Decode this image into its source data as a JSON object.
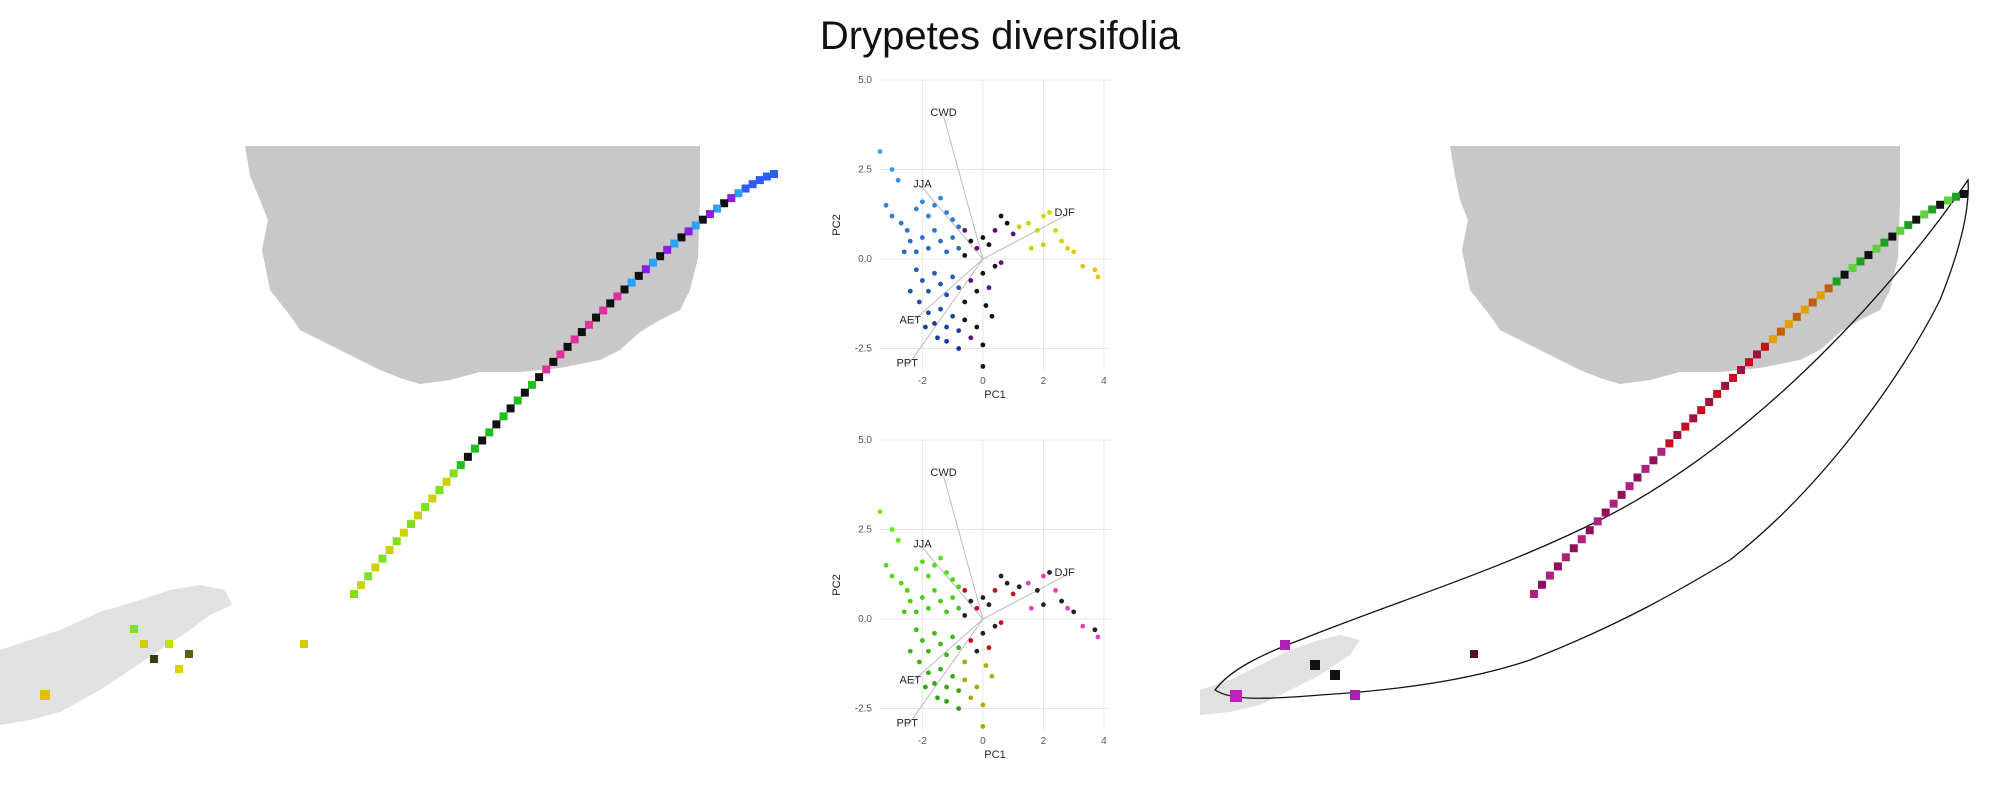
{
  "title": "Drypetes diversifolia",
  "chart_data": [
    {
      "type": "map",
      "panel": "left",
      "description_units": "geographic",
      "legend": "none"
    },
    {
      "type": "scatter",
      "panel": "pca-top",
      "xlabel": "PC1",
      "ylabel": "PC2",
      "xlim": [
        -3.4,
        4.2
      ],
      "ylim": [
        -3.1,
        5.0
      ],
      "xticks": [
        "-2",
        "0",
        "2",
        "4"
      ],
      "yticks": [
        "5.0",
        "2.5",
        "0.0",
        "-2.5"
      ],
      "xtick_values": [
        -2,
        0,
        2,
        4
      ],
      "ytick_values": [
        5.0,
        2.5,
        0.0,
        -2.5
      ],
      "grid": true,
      "vectors": [
        {
          "label": "CWD",
          "x": -1.3,
          "y": 4.0
        },
        {
          "label": "DJF",
          "x": 2.7,
          "y": 1.2
        },
        {
          "label": "JJA",
          "x": -2.0,
          "y": 2.0
        },
        {
          "label": "AET",
          "x": -2.4,
          "y": -1.8
        },
        {
          "label": "PPT",
          "x": -2.5,
          "y": -3.0
        }
      ],
      "points": [
        [
          -3.4,
          3.0
        ],
        [
          -3.0,
          2.5
        ],
        [
          -2.8,
          2.2
        ],
        [
          -3.2,
          1.5
        ],
        [
          -3.0,
          1.2
        ],
        [
          -2.7,
          1.0
        ],
        [
          -2.5,
          0.8
        ],
        [
          -2.2,
          1.4
        ],
        [
          -2.0,
          1.6
        ],
        [
          -1.8,
          1.2
        ],
        [
          -1.6,
          1.5
        ],
        [
          -1.4,
          1.7
        ],
        [
          -1.2,
          1.3
        ],
        [
          -1.0,
          1.1
        ],
        [
          -0.8,
          0.9
        ],
        [
          -0.6,
          0.8
        ],
        [
          -2.4,
          0.5
        ],
        [
          -2.2,
          0.2
        ],
        [
          -2.0,
          0.6
        ],
        [
          -1.8,
          0.3
        ],
        [
          -1.6,
          0.8
        ],
        [
          -1.4,
          0.5
        ],
        [
          -1.2,
          0.2
        ],
        [
          -1.0,
          0.6
        ],
        [
          -0.8,
          0.3
        ],
        [
          -0.6,
          0.1
        ],
        [
          -0.4,
          0.5
        ],
        [
          -0.2,
          0.3
        ],
        [
          0.0,
          0.6
        ],
        [
          0.2,
          0.4
        ],
        [
          0.4,
          0.8
        ],
        [
          0.6,
          1.2
        ],
        [
          0.8,
          1.0
        ],
        [
          1.0,
          0.7
        ],
        [
          1.2,
          0.9
        ],
        [
          1.5,
          1.0
        ],
        [
          1.8,
          0.8
        ],
        [
          2.0,
          1.2
        ],
        [
          2.2,
          1.3
        ],
        [
          2.4,
          0.8
        ],
        [
          2.6,
          0.5
        ],
        [
          2.8,
          0.3
        ],
        [
          3.0,
          0.2
        ],
        [
          3.3,
          -0.2
        ],
        [
          3.7,
          -0.3
        ],
        [
          3.8,
          -0.5
        ],
        [
          2.0,
          0.4
        ],
        [
          1.6,
          0.3
        ],
        [
          -2.2,
          -0.3
        ],
        [
          -2.0,
          -0.6
        ],
        [
          -1.8,
          -0.9
        ],
        [
          -1.6,
          -0.4
        ],
        [
          -1.4,
          -0.7
        ],
        [
          -1.2,
          -1.0
        ],
        [
          -1.0,
          -0.5
        ],
        [
          -0.8,
          -0.8
        ],
        [
          -0.6,
          -1.2
        ],
        [
          -0.4,
          -0.6
        ],
        [
          -0.2,
          -0.9
        ],
        [
          0.0,
          -0.4
        ],
        [
          0.2,
          -0.8
        ],
        [
          0.1,
          -1.3
        ],
        [
          -1.8,
          -1.5
        ],
        [
          -1.6,
          -1.8
        ],
        [
          -1.4,
          -1.4
        ],
        [
          -1.2,
          -1.9
        ],
        [
          -1.0,
          -1.6
        ],
        [
          -0.8,
          -2.0
        ],
        [
          -0.6,
          -1.7
        ],
        [
          -0.4,
          -2.2
        ],
        [
          -0.2,
          -1.9
        ],
        [
          0.0,
          -2.4
        ],
        [
          -1.2,
          -2.3
        ],
        [
          -0.8,
          -2.5
        ],
        [
          0.0,
          -3.0
        ],
        [
          -1.5,
          -2.2
        ],
        [
          -2.4,
          -0.9
        ],
        [
          -2.1,
          -1.2
        ],
        [
          -1.9,
          -1.9
        ],
        [
          0.3,
          -1.6
        ],
        [
          0.4,
          -0.2
        ],
        [
          0.6,
          -0.1
        ],
        [
          -2.6,
          0.2
        ]
      ]
    },
    {
      "type": "scatter",
      "panel": "pca-bottom",
      "xlabel": "PC1",
      "ylabel": "PC2",
      "xlim": [
        -3.4,
        4.2
      ],
      "ylim": [
        -3.1,
        5.0
      ],
      "xticks": [
        "-2",
        "0",
        "2",
        "4"
      ],
      "yticks": [
        "5.0",
        "2.5",
        "0.0",
        "-2.5"
      ],
      "xtick_values": [
        -2,
        0,
        2,
        4
      ],
      "ytick_values": [
        5.0,
        2.5,
        0.0,
        -2.5
      ],
      "grid": true,
      "vectors": [
        {
          "label": "CWD",
          "x": -1.3,
          "y": 4.0
        },
        {
          "label": "DJF",
          "x": 2.7,
          "y": 1.2
        },
        {
          "label": "JJA",
          "x": -2.0,
          "y": 2.0
        },
        {
          "label": "AET",
          "x": -2.4,
          "y": -1.8
        },
        {
          "label": "PPT",
          "x": -2.5,
          "y": -3.0
        }
      ]
    },
    {
      "type": "map",
      "panel": "right",
      "legend": "none"
    }
  ]
}
